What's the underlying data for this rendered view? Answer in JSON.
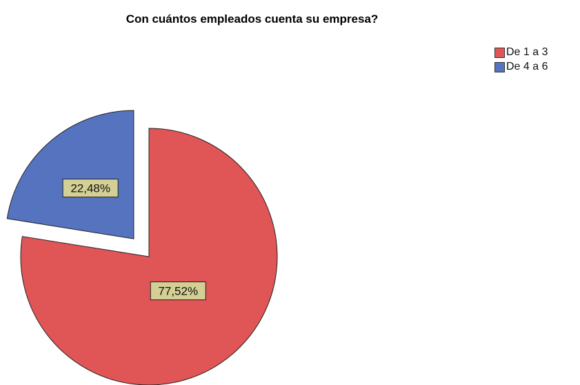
{
  "chart_data": {
    "type": "pie",
    "title": "Con cuántos empleados cuenta su empresa?",
    "legend_position": "top-right",
    "slices": [
      {
        "name": "De 1 a 3",
        "value": 77.52,
        "label": "77,52%",
        "color": "#e05555",
        "exploded": false
      },
      {
        "name": "De 4 a 6",
        "value": 22.48,
        "label": "22,48%",
        "color": "#5673c0",
        "exploded": true
      }
    ],
    "label_box_color": "#d4cf94"
  }
}
